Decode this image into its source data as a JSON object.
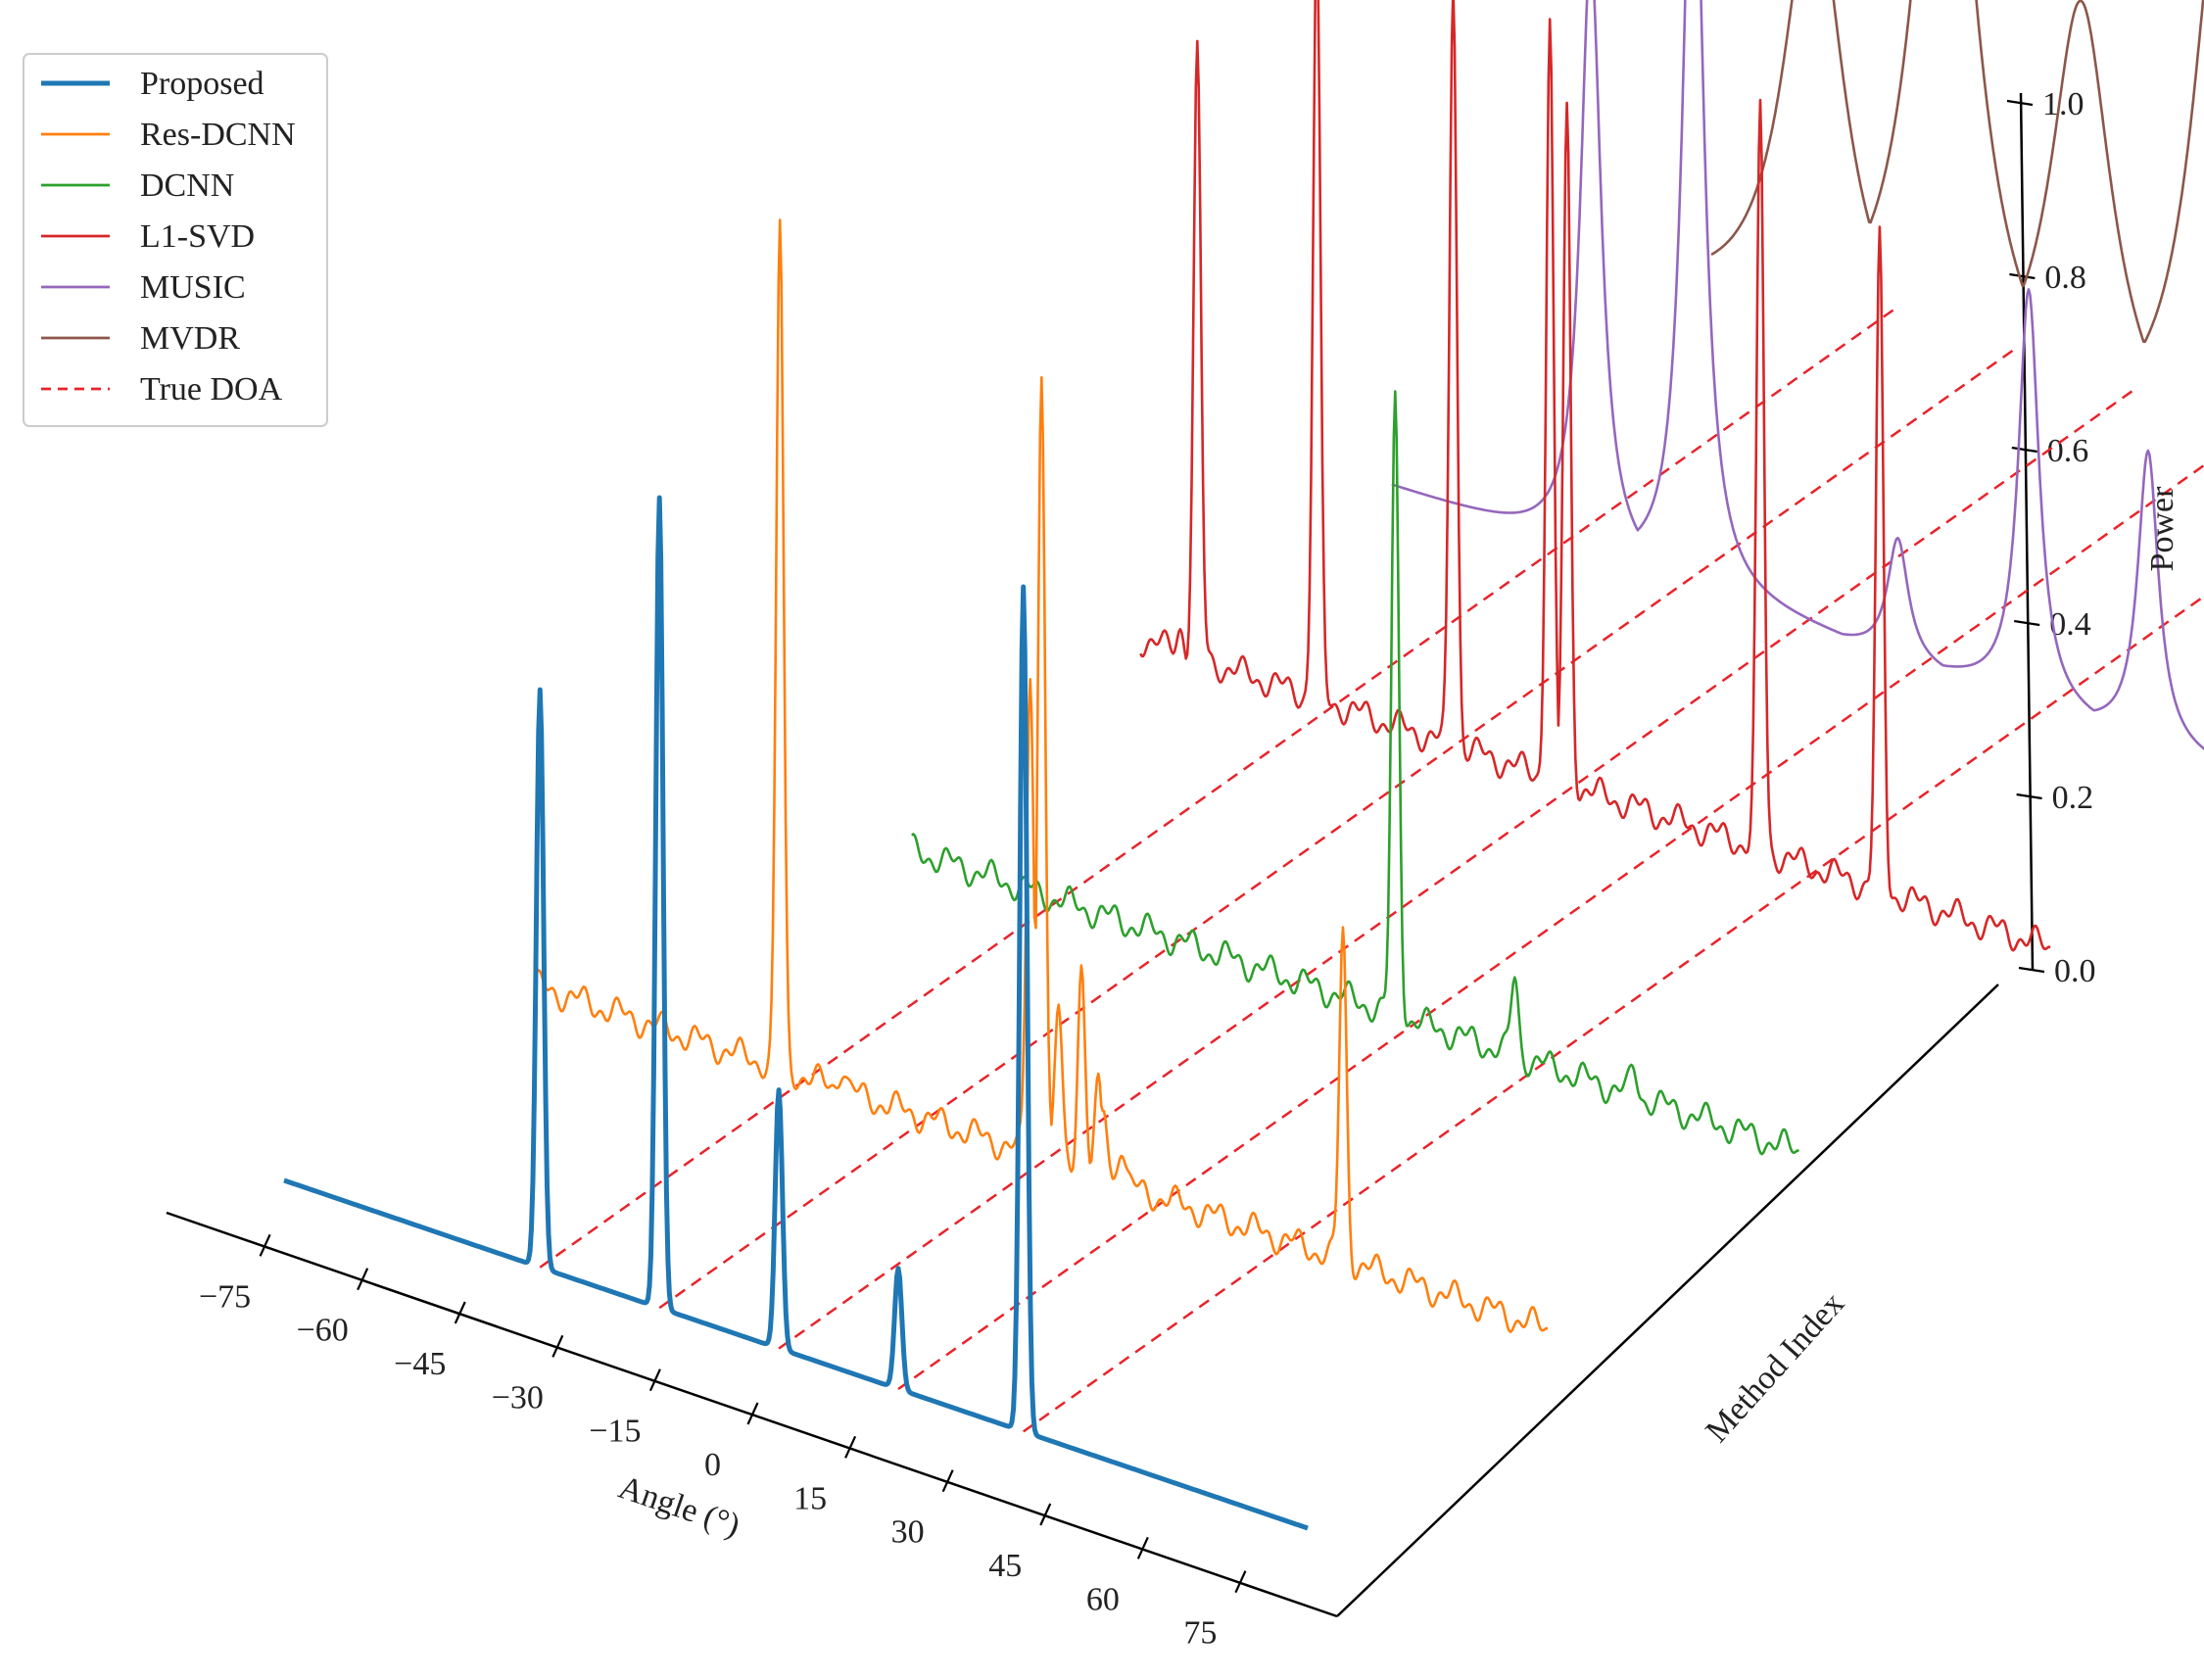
{
  "chart_data": {
    "type": "line",
    "projection": "3d-waterfall",
    "xlabel": "Angle (°)",
    "ylabel": "Method Index",
    "zlabel": "Power",
    "x_ticks": [
      "−75",
      "−60",
      "−45",
      "−30",
      "−15",
      "0",
      "15",
      "30",
      "45",
      "60",
      "75"
    ],
    "z_ticks": [
      "0.0",
      "0.2",
      "0.4",
      "0.6",
      "0.8",
      "1.0"
    ],
    "xlim": [
      -90,
      90
    ],
    "zlim": [
      0,
      1
    ],
    "true_doa": [
      -45,
      -24,
      -3,
      18,
      40
    ],
    "legend": [
      {
        "label": "Proposed",
        "color": "#1f77b4",
        "style": "solid",
        "thick": true
      },
      {
        "label": "Res-DCNN",
        "color": "#ff7f0e",
        "style": "solid",
        "thick": false
      },
      {
        "label": "DCNN",
        "color": "#2ca02c",
        "style": "solid",
        "thick": false
      },
      {
        "label": "L1-SVD",
        "color": "#d62728",
        "style": "solid",
        "thick": false
      },
      {
        "label": "MUSIC",
        "color": "#9467bd",
        "style": "solid",
        "thick": false
      },
      {
        "label": "MVDR",
        "color": "#8c564b",
        "style": "solid",
        "thick": false
      },
      {
        "label": "True DOA",
        "color": "#e8232a",
        "style": "dashed",
        "thick": false
      }
    ],
    "series": [
      {
        "name": "Proposed",
        "index": 0,
        "color": "#1f77b4",
        "base": 0.0,
        "peaks": [
          {
            "x": -45,
            "h": 0.67
          },
          {
            "x": -24,
            "h": 0.94
          },
          {
            "x": -3,
            "h": 0.3
          },
          {
            "x": 18,
            "h": 0.14
          },
          {
            "x": 40,
            "h": 0.98
          }
        ]
      },
      {
        "name": "Res-DCNN",
        "index": 1,
        "color": "#ff7f0e",
        "base": 0.02,
        "peaks": [
          {
            "x": -47,
            "h": 1.0
          },
          {
            "x": -36,
            "h": 0.05
          },
          {
            "x": -3,
            "h": 0.58
          },
          {
            "x": -1,
            "h": 0.94
          },
          {
            "x": 2,
            "h": 0.2
          },
          {
            "x": 6,
            "h": 0.26
          },
          {
            "x": 9,
            "h": 0.12
          },
          {
            "x": 10,
            "h": 0.1
          },
          {
            "x": 13,
            "h": 0.07
          },
          {
            "x": 52,
            "h": 0.4
          }
        ]
      },
      {
        "name": "DCNN",
        "index": 2,
        "color": "#2ca02c",
        "base": 0.02,
        "peaks": [
          {
            "x": -66,
            "h": 0.02
          },
          {
            "x": 17,
            "h": 0.73
          },
          {
            "x": 38,
            "h": 0.11
          },
          {
            "x": 59,
            "h": 0.05
          },
          {
            "x": 82,
            "h": 0.02
          }
        ]
      },
      {
        "name": "L1-SVD",
        "index": 3,
        "color": "#d62728",
        "base": 0.05,
        "peaks": [
          {
            "x": -65,
            "h": 0.08
          },
          {
            "x": -62,
            "h": 0.75
          },
          {
            "x": -41,
            "h": 0.93
          },
          {
            "x": -17,
            "h": 0.94
          },
          {
            "x": 0,
            "h": 0.93
          },
          {
            "x": 3,
            "h": 0.83
          },
          {
            "x": 37,
            "h": 0.91
          },
          {
            "x": 58,
            "h": 0.8
          }
        ]
      },
      {
        "name": "MUSIC",
        "index": 4,
        "color": "#9467bd",
        "base": 0.02,
        "peaks": [
          {
            "x": -37,
            "h": 0.72
          },
          {
            "x": -19,
            "h": 0.98
          },
          {
            "x": 17,
            "h": 0.16
          },
          {
            "x": 40,
            "h": 0.5
          },
          {
            "x": 61,
            "h": 0.36
          }
        ]
      },
      {
        "name": "MVDR",
        "index": 5,
        "color": "#8c564b",
        "base": 0.05,
        "peaks": [
          {
            "x": -42,
            "h": 0.57
          },
          {
            "x": -19,
            "h": 0.85
          },
          {
            "x": 5,
            "h": 0.55
          },
          {
            "x": 30,
            "h": 0.76
          },
          {
            "x": 58,
            "h": 0.45
          }
        ]
      }
    ]
  }
}
